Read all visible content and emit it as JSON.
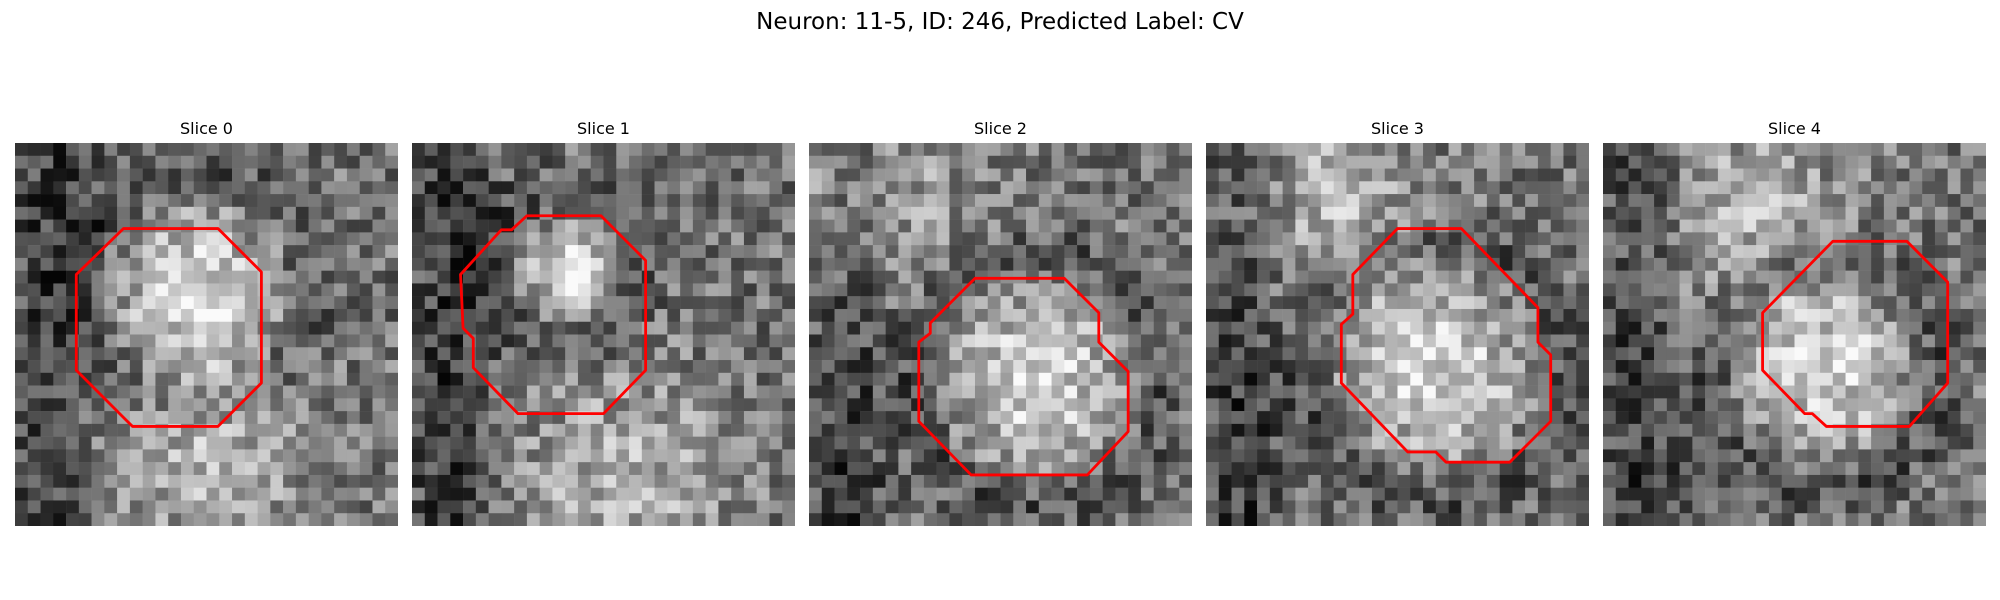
{
  "figure": {
    "title": "Neuron: 11-5, ID: 246, Predicted Label: CV"
  },
  "slices": [
    {
      "title": "Slice 0",
      "seed": 11,
      "blob_x": 0.47,
      "blob_y": 0.38,
      "blob_r": 0.22,
      "bright_x": 0.5,
      "bright_y": 0.82
    },
    {
      "title": "Slice 1",
      "seed": 27,
      "blob_x": 0.4,
      "blob_y": 0.33,
      "blob_r": 0.14,
      "bright_x": 0.55,
      "bright_y": 0.88
    },
    {
      "title": "Slice 2",
      "seed": 43,
      "blob_x": 0.6,
      "blob_y": 0.62,
      "blob_r": 0.24,
      "bright_x": 0.12,
      "bright_y": 0.12
    },
    {
      "title": "Slice 3",
      "seed": 59,
      "blob_x": 0.6,
      "blob_y": 0.6,
      "blob_r": 0.25,
      "bright_x": 0.3,
      "bright_y": 0.15
    },
    {
      "title": "Slice 4",
      "seed": 71,
      "blob_x": 0.58,
      "blob_y": 0.6,
      "blob_r": 0.22,
      "bright_x": 0.35,
      "bright_y": 0.2
    }
  ],
  "colors": {
    "roi": "#ff0000",
    "background": "#ffffff"
  }
}
